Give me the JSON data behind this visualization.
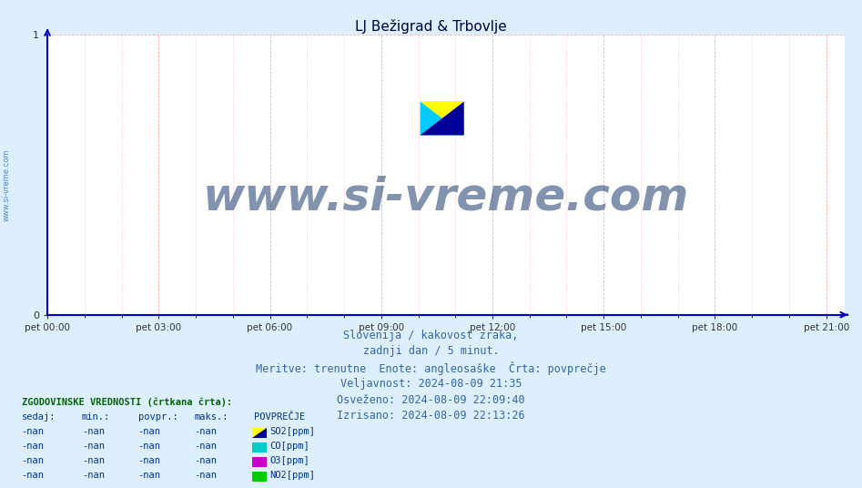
{
  "title": "LJ Bežigrad & Trbovlje",
  "background_color": "#ddeeff",
  "plot_bg_color": "#ffffff",
  "grid_color": "#ffaaaa",
  "axis_color": "#0000cc",
  "title_color": "#000044",
  "x_tick_labels": [
    "pet 00:00",
    "pet 03:00",
    "pet 06:00",
    "pet 09:00",
    "pet 12:00",
    "pet 15:00",
    "pet 18:00",
    "pet 21:00"
  ],
  "x_tick_positions": [
    0,
    3,
    6,
    9,
    12,
    15,
    18,
    21
  ],
  "x_min": 0,
  "x_max": 21.5,
  "y_min": 0,
  "y_max": 1,
  "y_ticks": [
    0,
    1
  ],
  "watermark_text": "www.si-vreme.com",
  "watermark_color": "#1a3a6e",
  "watermark_alpha": 0.55,
  "sidebar_text": "www.si-vreme.com",
  "sidebar_color": "#2266aa",
  "info_lines": [
    "Slovenija / kakovost zraka,",
    "zadnji dan / 5 minut.",
    "Meritve: trenutne  Enote: angleosaške  Črta: povprečje",
    "Veljavnost: 2024-08-09 21:35",
    "Osveženo: 2024-08-09 22:09:40",
    "Izrisano: 2024-08-09 22:13:26"
  ],
  "info_color": "#3366aa",
  "info_fontsize": 8.5,
  "legend_header": "ZGODOVINSKE VREDNOSTI (črtkana črta):",
  "legend_col_headers": [
    "sedaj:",
    "min.:",
    "povpr.:",
    "maks.:",
    "POVPREČJE"
  ],
  "legend_rows": [
    [
      "-nan",
      "-nan",
      "-nan",
      "-nan",
      "SO2[ppm]"
    ],
    [
      "-nan",
      "-nan",
      "-nan",
      "-nan",
      "CO[ppm]"
    ],
    [
      "-nan",
      "-nan",
      "-nan",
      "-nan",
      "O3[ppm]"
    ],
    [
      "-nan",
      "-nan",
      "-nan",
      "-nan",
      "NO2[ppm]"
    ]
  ],
  "legend_colors": [
    "#006600",
    "#00cccc",
    "#cc00cc",
    "#00cc00"
  ],
  "so2_color1": "#ffff00",
  "so2_color2": "#000099",
  "co_color": "#00cccc",
  "o3_color": "#cc00cc",
  "no2_color": "#00cc00",
  "title_fontsize": 11,
  "logo_yellow": "#ffff00",
  "logo_cyan": "#00ccff",
  "logo_darkblue": "#000099"
}
